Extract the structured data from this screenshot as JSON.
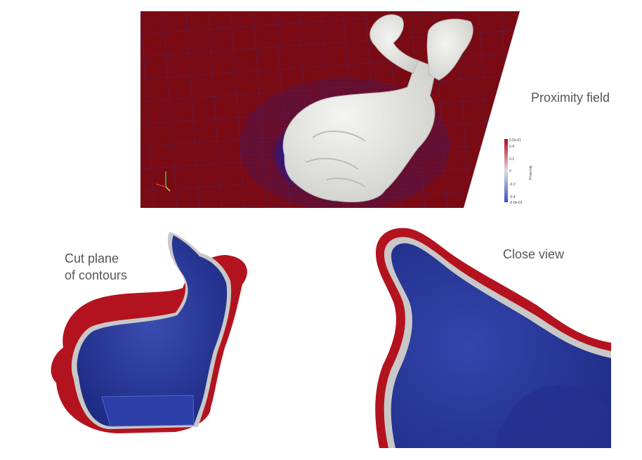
{
  "captions": {
    "proximity_field": "Proximity field",
    "cut_plane_line1": "Cut plane",
    "cut_plane_line2": "of contours",
    "close_view": "Close view"
  },
  "colorbar": {
    "title": "Proximity",
    "max_label": "5.0e-01",
    "min_label": "-5.0e-01",
    "ticks": [
      "0.4",
      "0.2",
      "0",
      "-0.2",
      "-0.4"
    ],
    "colors": {
      "high": "#b40426",
      "mid": "#dddddd",
      "low": "#3b4cc0"
    }
  },
  "colors": {
    "field_red": "#7a0a14",
    "grid_blue": "#2b2f8a",
    "mesh_white": "#ececea",
    "contour_red": "#b3131f",
    "contour_blue": "#2a3a9e",
    "contour_gray": "#c8c8c8"
  }
}
